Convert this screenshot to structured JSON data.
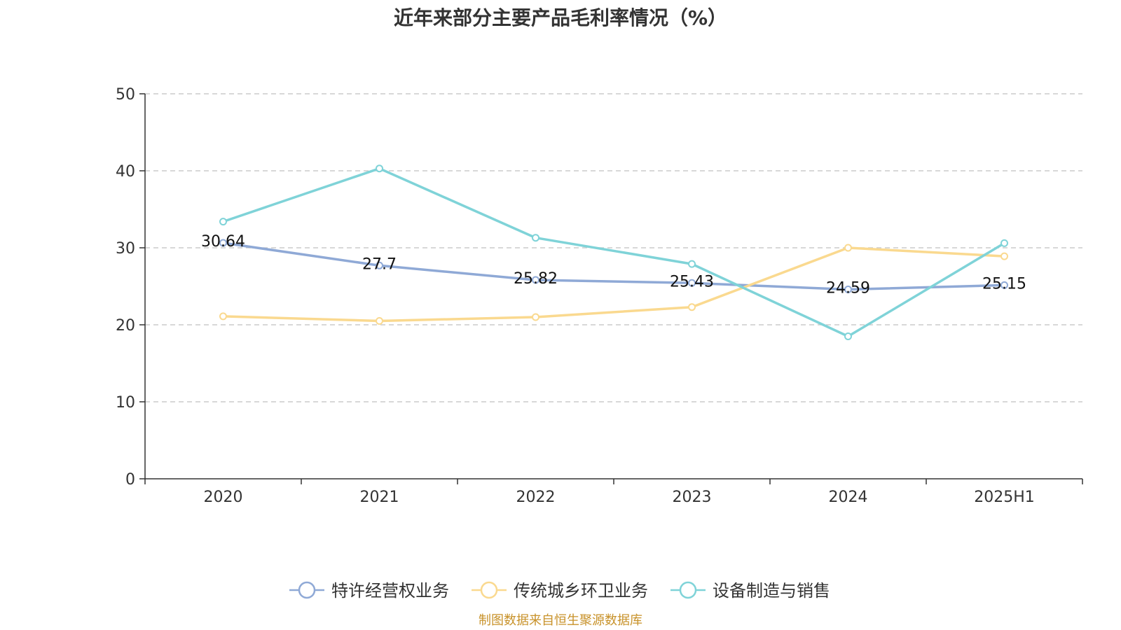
{
  "chart_data": {
    "type": "line",
    "title": "近年来部分主要产品毛利率情况（%）",
    "categories": [
      "2020",
      "2021",
      "2022",
      "2023",
      "2024",
      "2025H1"
    ],
    "ylim": [
      0,
      50
    ],
    "yticks": [
      0,
      10,
      20,
      30,
      40,
      50
    ],
    "grid": true,
    "legend_position": "bottom",
    "series": [
      {
        "name": "特许经营权业务",
        "color": "#8fa9d6",
        "values": [
          30.64,
          27.7,
          25.82,
          25.43,
          24.59,
          25.15
        ],
        "data_labels": [
          "30.64",
          "27.7",
          "25.82",
          "25.43",
          "24.59",
          "25.15"
        ]
      },
      {
        "name": "传统城乡环卫业务",
        "color": "#fad98f",
        "values": [
          21.1,
          20.5,
          21.0,
          22.3,
          30.0,
          28.9
        ]
      },
      {
        "name": "设备制造与销售",
        "color": "#7fd3d8",
        "values": [
          33.4,
          40.3,
          31.3,
          27.9,
          18.5,
          30.6
        ]
      }
    ]
  },
  "source_note": "制图数据来自恒生聚源数据库"
}
